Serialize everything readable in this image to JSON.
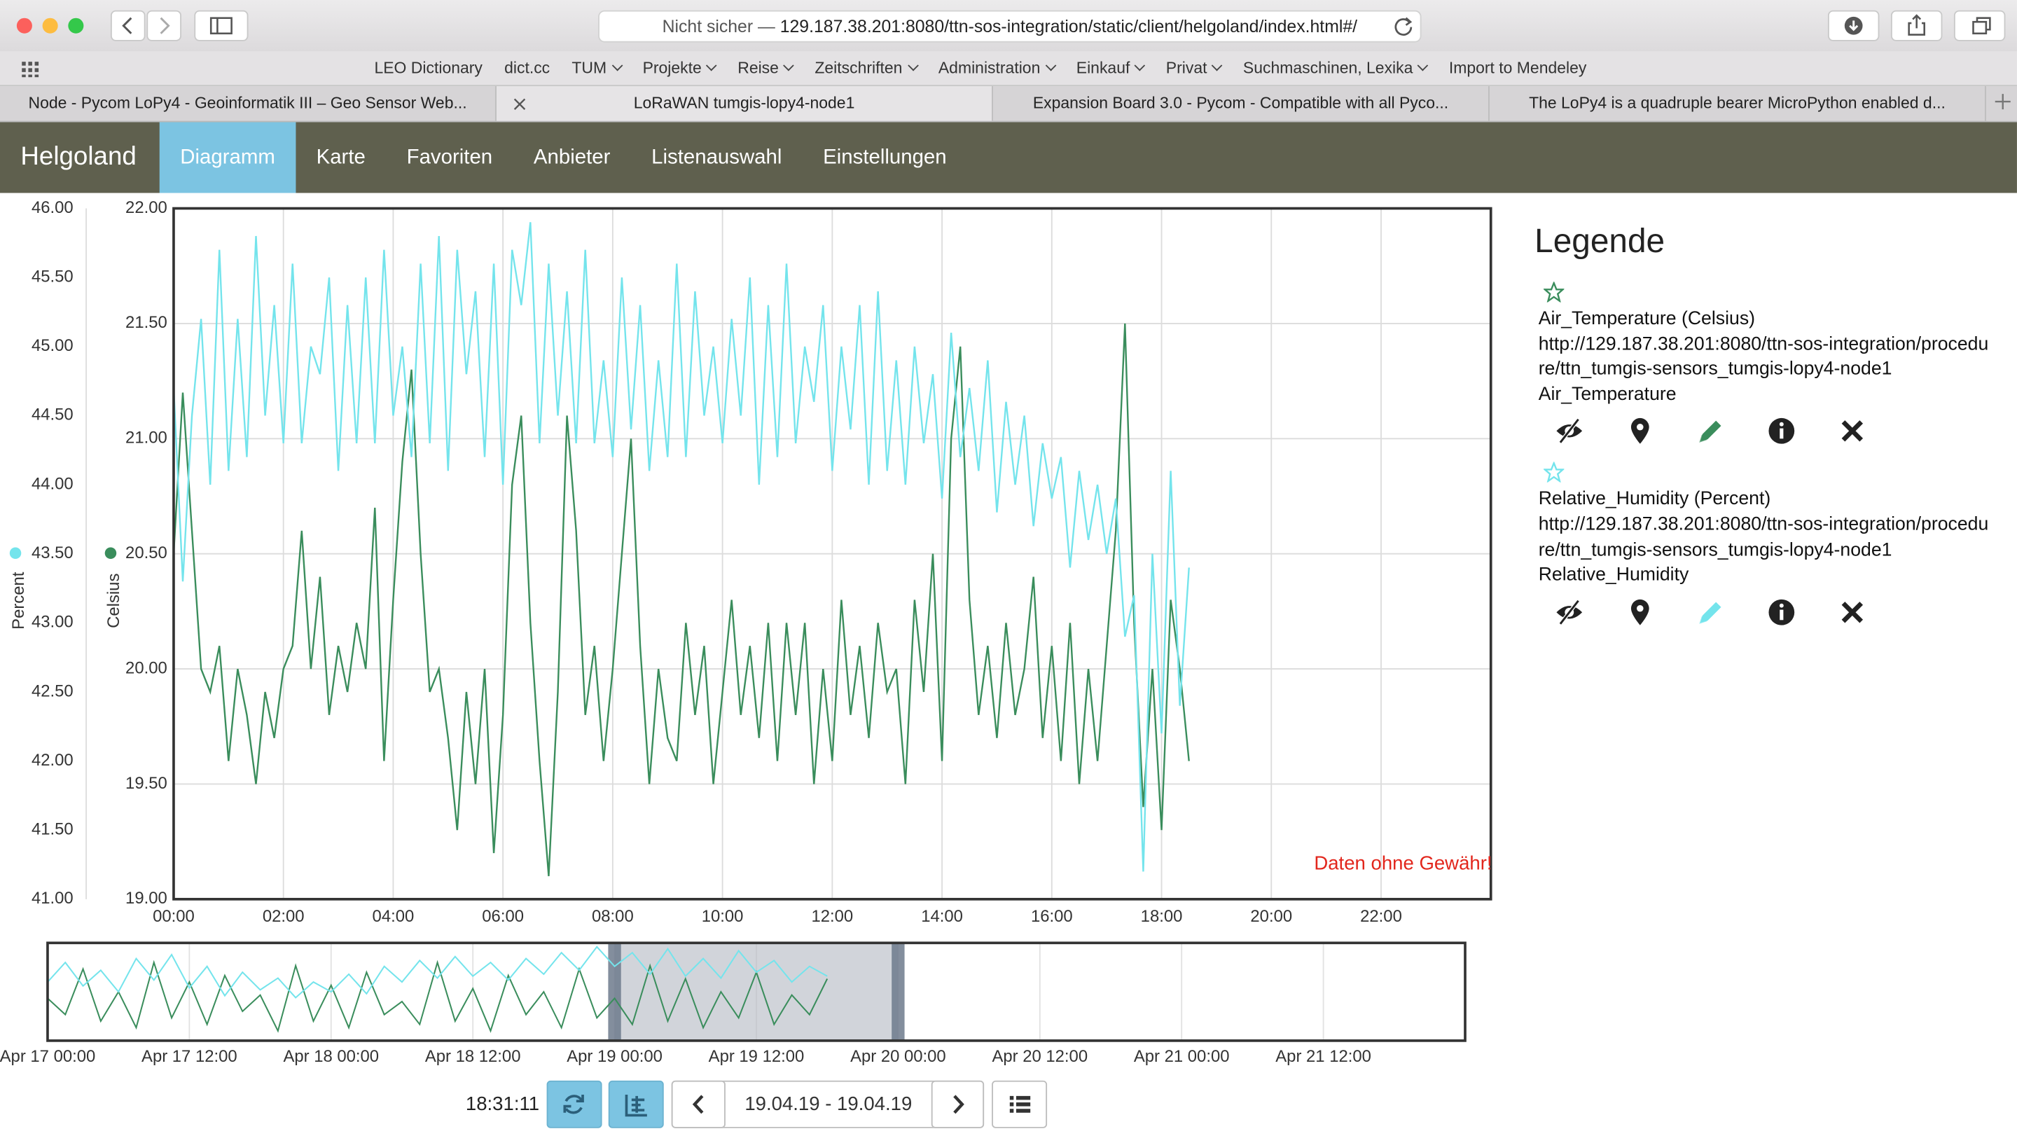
{
  "browser": {
    "address_prefix": "Nicht sicher —",
    "address": "129.187.38.201:8080/ttn-sos-integration/static/client/helgoland/index.html#/",
    "bookmarks": [
      {
        "label": "LEO Dictionary",
        "menu": false
      },
      {
        "label": "dict.cc",
        "menu": false
      },
      {
        "label": "TUM",
        "menu": true
      },
      {
        "label": "Projekte",
        "menu": true
      },
      {
        "label": "Reise",
        "menu": true
      },
      {
        "label": "Zeitschriften",
        "menu": true
      },
      {
        "label": "Administration",
        "menu": true
      },
      {
        "label": "Einkauf",
        "menu": true
      },
      {
        "label": "Privat",
        "menu": true
      },
      {
        "label": "Suchmaschinen, Lexika",
        "menu": true
      },
      {
        "label": "Import to Mendeley",
        "menu": false
      }
    ],
    "tabs": [
      "Node - Pycom LoPy4 - Geoinformatik III – Geo Sensor Web...",
      "LoRaWAN tumgis-lopy4-node1",
      "Expansion Board 3.0 - Pycom - Compatible with all Pyco...",
      "The LoPy4 is a quadruple bearer MicroPython enabled d..."
    ],
    "active_tab": 1
  },
  "nav": {
    "brand": "Helgoland",
    "items": [
      "Diagramm",
      "Karte",
      "Favoriten",
      "Anbieter",
      "Listenauswahl",
      "Einstellungen"
    ],
    "active": 0
  },
  "legend": {
    "title": "Legende",
    "entries": [
      {
        "url": "http://129.187.38.201:8080/ttn-sos-integration/procedure/ttn_tumgis-sensors_tumgis-lopy4-node1",
        "phenomenon": "Air_Temperature"
      },
      {
        "url": "http://129.187.38.201:8080/ttn-sos-integration/procedure/ttn_tumgis-sensors_tumgis-lopy4-node1",
        "phenomenon": "Relative_Humidity"
      }
    ]
  },
  "controls": {
    "time": "18:31:11",
    "range": "19.04.19 - 19.04.19"
  },
  "chart_data": [
    {
      "type": "line",
      "ylabel": "Celsius",
      "y2label": "Percent",
      "annotation": "Daten ohne Gewähr!",
      "grid": true,
      "xlim": [
        0,
        1440
      ],
      "xticks": [
        {
          "value": 0,
          "label": "00:00"
        },
        {
          "value": 120,
          "label": "02:00"
        },
        {
          "value": 240,
          "label": "04:00"
        },
        {
          "value": 360,
          "label": "06:00"
        },
        {
          "value": 480,
          "label": "08:00"
        },
        {
          "value": 600,
          "label": "10:00"
        },
        {
          "value": 720,
          "label": "12:00"
        },
        {
          "value": 840,
          "label": "14:00"
        },
        {
          "value": 960,
          "label": "16:00"
        },
        {
          "value": 1080,
          "label": "18:00"
        },
        {
          "value": 1200,
          "label": "20:00"
        },
        {
          "value": 1320,
          "label": "22:00"
        }
      ],
      "ylim": [
        19,
        22
      ],
      "yticks": [
        {
          "value": 19,
          "label": "19.00"
        },
        {
          "value": 19.5,
          "label": "19.50"
        },
        {
          "value": 20,
          "label": "20.00"
        },
        {
          "value": 20.5,
          "label": "20.50"
        },
        {
          "value": 21,
          "label": "21.00"
        },
        {
          "value": 21.5,
          "label": "21.50"
        },
        {
          "value": 22,
          "label": "22.00"
        }
      ],
      "y2lim": [
        41,
        46
      ],
      "y2ticks": [
        {
          "value": 41,
          "label": "41.00"
        },
        {
          "value": 41.5,
          "label": "41.50"
        },
        {
          "value": 42,
          "label": "42.00"
        },
        {
          "value": 42.5,
          "label": "42.50"
        },
        {
          "value": 43,
          "label": "43.00"
        },
        {
          "value": 43.5,
          "label": "43.50"
        },
        {
          "value": 44,
          "label": "44.00"
        },
        {
          "value": 44.5,
          "label": "44.50"
        },
        {
          "value": 45,
          "label": "45.00"
        },
        {
          "value": 45.5,
          "label": "45.50"
        },
        {
          "value": 46,
          "label": "46.00"
        }
      ],
      "x": [
        0,
        10,
        20,
        30,
        40,
        50,
        60,
        70,
        80,
        90,
        100,
        110,
        120,
        130,
        140,
        150,
        160,
        170,
        180,
        190,
        200,
        210,
        220,
        230,
        240,
        250,
        260,
        270,
        280,
        290,
        300,
        310,
        320,
        330,
        340,
        350,
        360,
        370,
        380,
        390,
        400,
        410,
        420,
        430,
        440,
        450,
        460,
        470,
        480,
        490,
        500,
        510,
        520,
        530,
        540,
        550,
        560,
        570,
        580,
        590,
        600,
        610,
        620,
        630,
        640,
        650,
        660,
        670,
        680,
        690,
        700,
        710,
        720,
        730,
        740,
        750,
        760,
        770,
        780,
        790,
        800,
        810,
        820,
        830,
        840,
        850,
        860,
        870,
        880,
        890,
        900,
        910,
        920,
        930,
        940,
        950,
        960,
        970,
        980,
        990,
        1000,
        1010,
        1020,
        1030,
        1040,
        1050,
        1060,
        1070,
        1080,
        1090,
        1100,
        1110
      ],
      "series": [
        {
          "name": "Air_Temperature (Celsius)",
          "color": "#3a8d5c",
          "axis": "y",
          "values": [
            20.5,
            21.2,
            20.6,
            20.0,
            19.9,
            20.1,
            19.6,
            20.0,
            19.8,
            19.5,
            19.9,
            19.7,
            20.0,
            20.1,
            20.6,
            20.0,
            20.4,
            19.8,
            20.1,
            19.9,
            20.2,
            20.0,
            20.7,
            19.6,
            20.3,
            20.9,
            21.3,
            20.5,
            19.9,
            20.0,
            19.7,
            19.3,
            19.9,
            19.5,
            20.0,
            19.2,
            19.8,
            20.8,
            21.1,
            20.2,
            19.6,
            19.1,
            19.9,
            21.1,
            20.6,
            19.8,
            20.1,
            19.6,
            20.0,
            20.5,
            21.0,
            20.1,
            19.5,
            20.0,
            19.7,
            19.6,
            20.2,
            19.8,
            20.1,
            19.5,
            19.9,
            20.3,
            19.8,
            20.1,
            19.7,
            20.2,
            19.6,
            20.2,
            19.8,
            20.2,
            19.5,
            20.0,
            19.6,
            20.3,
            19.8,
            20.1,
            19.7,
            20.2,
            19.9,
            20.0,
            19.5,
            20.3,
            19.9,
            20.5,
            19.6,
            21.0,
            21.4,
            20.3,
            19.8,
            20.1,
            19.7,
            20.2,
            19.8,
            20.0,
            20.4,
            19.7,
            20.1,
            19.6,
            20.2,
            19.5,
            20.0,
            19.6,
            20.1,
            20.6,
            21.5,
            20.2,
            19.4,
            20.0,
            19.3,
            20.3,
            20.0,
            19.6
          ]
        },
        {
          "name": "Relative_Humidity (Percent)",
          "color": "#74e4ec",
          "axis": "y2",
          "values": [
            44.7,
            43.3,
            44.5,
            45.2,
            44.0,
            45.7,
            44.1,
            45.2,
            44.2,
            45.8,
            44.5,
            45.3,
            44.3,
            45.6,
            44.3,
            45.0,
            44.8,
            45.5,
            44.1,
            45.3,
            44.3,
            45.5,
            44.3,
            45.7,
            44.5,
            45.0,
            44.2,
            45.6,
            44.3,
            45.8,
            44.1,
            45.7,
            44.8,
            45.4,
            44.2,
            45.6,
            44.0,
            45.7,
            45.3,
            45.9,
            44.3,
            45.6,
            44.5,
            45.4,
            44.3,
            45.7,
            44.3,
            44.9,
            44.2,
            45.5,
            44.4,
            45.3,
            44.1,
            44.9,
            44.2,
            45.6,
            44.2,
            45.4,
            44.5,
            45.0,
            44.3,
            45.2,
            44.5,
            45.5,
            44.0,
            45.3,
            44.2,
            45.6,
            44.3,
            45.0,
            44.6,
            45.3,
            44.1,
            45.0,
            44.4,
            45.3,
            44.0,
            45.4,
            44.1,
            44.9,
            44.0,
            45.0,
            44.3,
            44.8,
            43.9,
            45.1,
            44.2,
            44.7,
            44.1,
            44.9,
            43.8,
            44.6,
            44.0,
            44.5,
            43.7,
            44.3,
            43.9,
            44.2,
            43.4,
            44.1,
            43.6,
            44.0,
            43.5,
            43.9,
            42.9,
            43.2,
            41.2,
            43.5,
            42.2,
            44.1,
            42.4,
            43.4
          ]
        }
      ]
    },
    {
      "type": "line",
      "grid": true,
      "xlim": [
        0,
        120
      ],
      "xticks": [
        {
          "value": 0,
          "label": "Apr 17 00:00"
        },
        {
          "value": 12,
          "label": "Apr 17 12:00"
        },
        {
          "value": 24,
          "label": "Apr 18 00:00"
        },
        {
          "value": 36,
          "label": "Apr 18 12:00"
        },
        {
          "value": 48,
          "label": "Apr 19 00:00"
        },
        {
          "value": 60,
          "label": "Apr 19 12:00"
        },
        {
          "value": 72,
          "label": "Apr 20 00:00"
        },
        {
          "value": 84,
          "label": "Apr 20 12:00"
        },
        {
          "value": 96,
          "label": "Apr 21 00:00"
        },
        {
          "value": 108,
          "label": "Apr 21 12:00"
        }
      ],
      "ylim": [
        19,
        22
      ],
      "y2lim": [
        41,
        46
      ],
      "selection": [
        48,
        72
      ],
      "x": [
        0,
        1.5,
        3,
        4.5,
        6,
        7.5,
        9,
        10.5,
        12,
        13.5,
        15,
        16.5,
        18,
        19.5,
        21,
        22.5,
        24,
        25.5,
        27,
        28.5,
        30,
        31.5,
        33,
        34.5,
        36,
        37.5,
        39,
        40.5,
        42,
        43.5,
        45,
        46.5,
        48,
        49.5,
        51,
        52.5,
        54,
        55.5,
        57,
        58.5,
        60,
        61.5,
        63,
        64.5,
        66
      ],
      "series": [
        {
          "color": "#3a8d5c",
          "axis": "y",
          "values": [
            20.3,
            19.8,
            21.2,
            19.6,
            20.5,
            19.4,
            21.4,
            19.7,
            20.8,
            19.5,
            21.0,
            19.9,
            20.4,
            19.3,
            21.3,
            19.6,
            20.7,
            19.4,
            21.1,
            19.8,
            20.2,
            19.5,
            21.4,
            19.6,
            20.6,
            19.3,
            21.0,
            19.8,
            20.5,
            19.4,
            21.2,
            19.7,
            20.3,
            19.5,
            21.3,
            19.6,
            20.9,
            19.4,
            20.5,
            19.7,
            21.1,
            19.5,
            20.4,
            19.8,
            20.9
          ]
        },
        {
          "color": "#74e4ec",
          "axis": "y2",
          "values": [
            44.0,
            45.0,
            43.8,
            44.6,
            43.5,
            45.2,
            44.1,
            45.4,
            43.7,
            44.8,
            43.3,
            44.5,
            43.6,
            44.2,
            43.2,
            44.0,
            43.5,
            44.4,
            43.4,
            44.8,
            44.0,
            45.1,
            44.2,
            45.3,
            44.3,
            45.0,
            44.1,
            45.2,
            44.4,
            45.5,
            44.6,
            45.8,
            44.8,
            45.5,
            44.4,
            45.7,
            44.3,
            45.2,
            44.2,
            45.6,
            44.5,
            45.1,
            44.0,
            44.8,
            44.3
          ]
        }
      ]
    }
  ]
}
